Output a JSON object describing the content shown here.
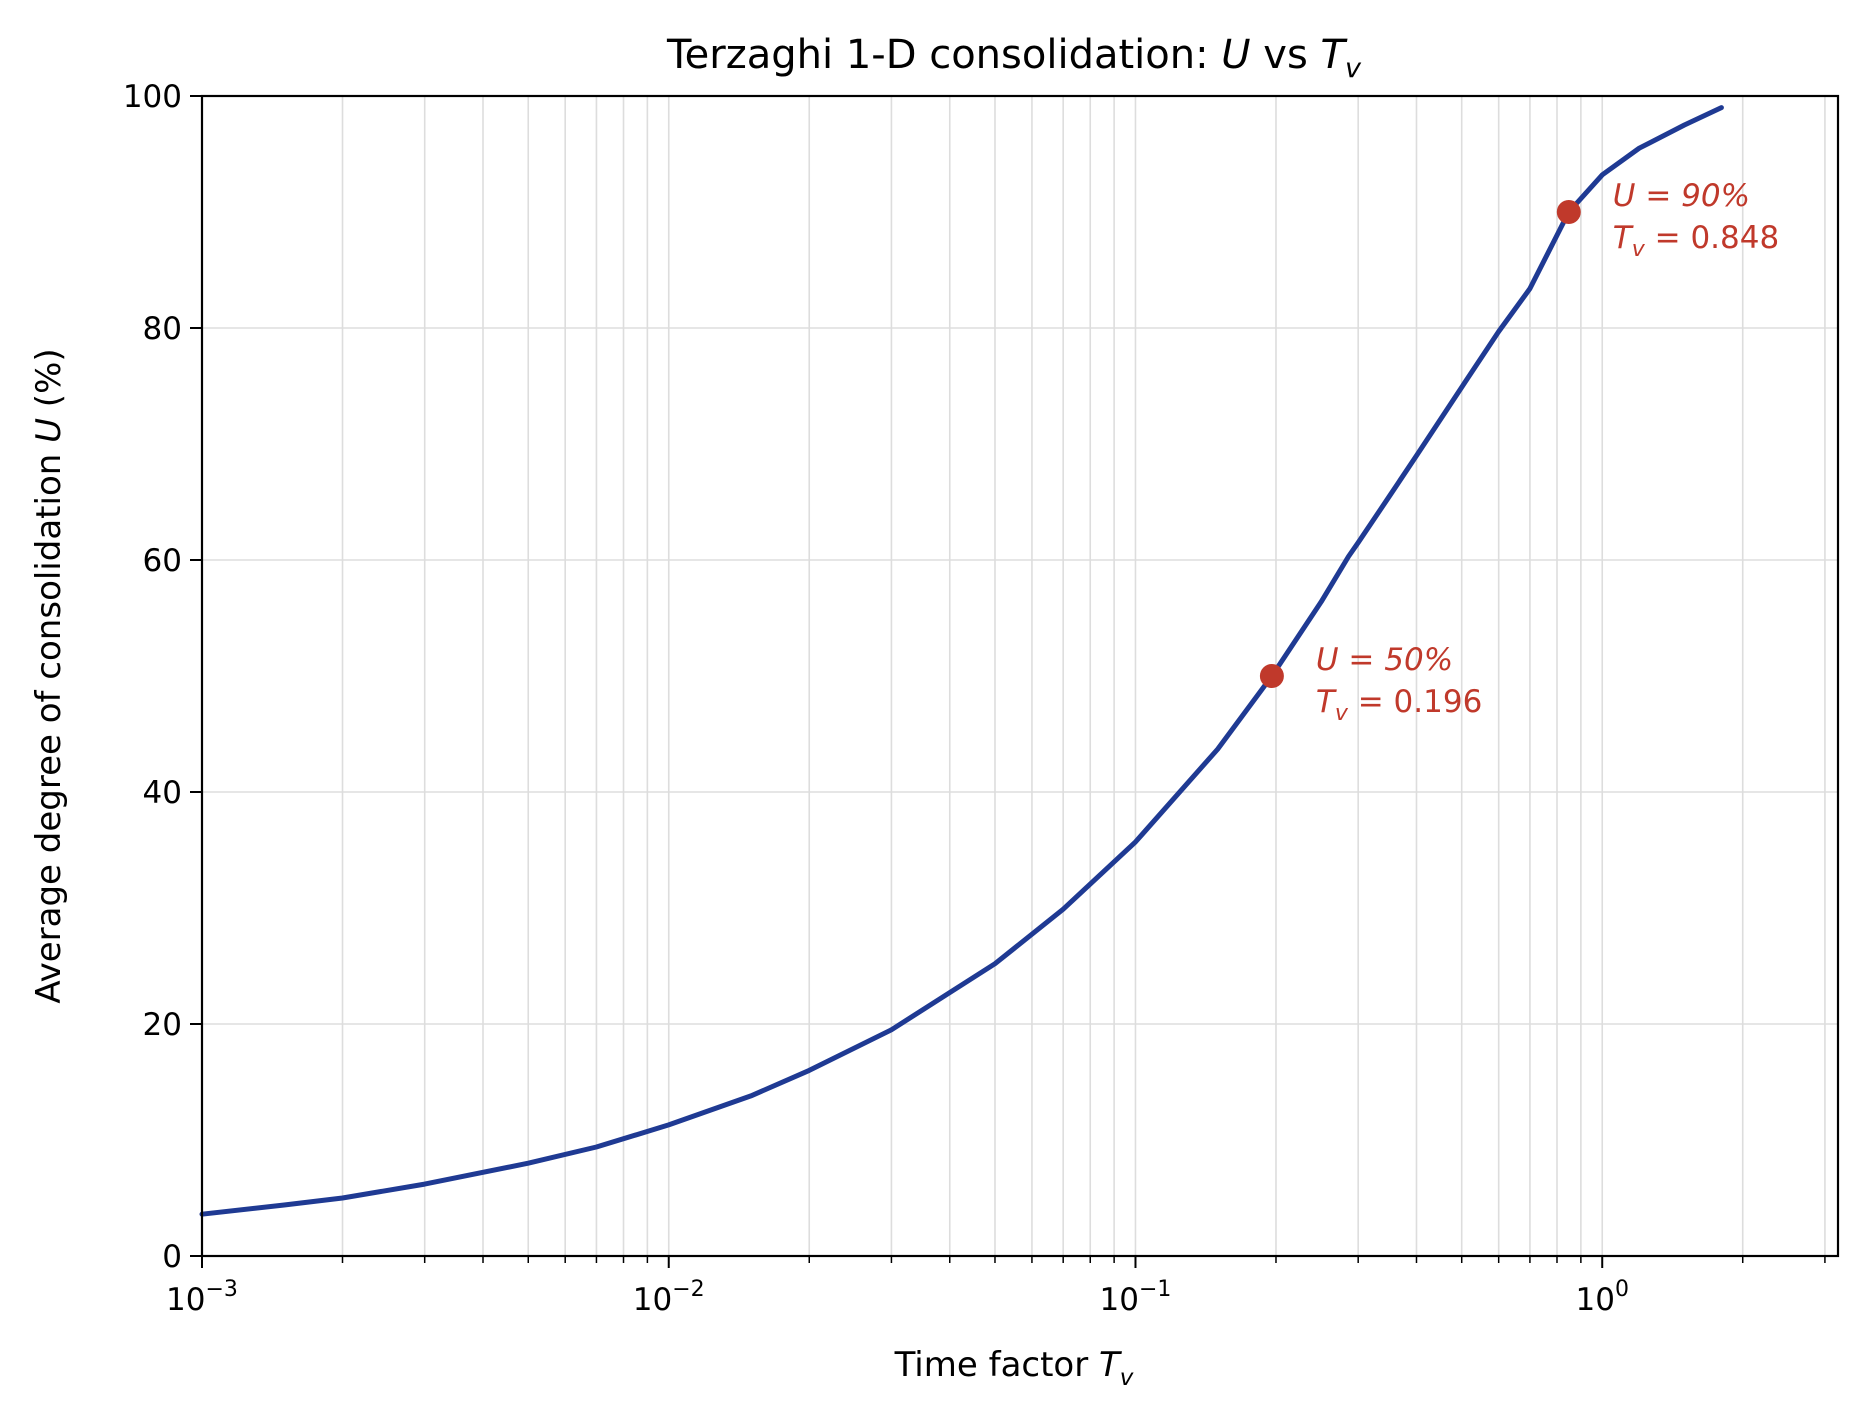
{
  "chart_data": {
    "type": "line",
    "title": {
      "prefix": "Terzaghi 1-D consolidation: ",
      "u": "U",
      "mid": " vs ",
      "t": "T",
      "sub": "v"
    },
    "xlabel": {
      "text": "Time factor ",
      "t": "T",
      "sub": "v"
    },
    "ylabel": {
      "text": "Average degree of consolidation ",
      "u": "U",
      "suffix": " (%)"
    },
    "x_scale": "log",
    "xlim": [
      0.001,
      3.2
    ],
    "ylim": [
      0,
      100
    ],
    "grid": true,
    "colors": {
      "curve": "#1f3a93",
      "markers": "#c0392b",
      "grid": "#dddddd"
    },
    "x_ticks": [
      {
        "value": 0.001,
        "base": "10",
        "exp": "−3"
      },
      {
        "value": 0.01,
        "base": "10",
        "exp": "−2"
      },
      {
        "value": 0.1,
        "base": "10",
        "exp": "−1"
      },
      {
        "value": 1,
        "base": "10",
        "exp": "0"
      }
    ],
    "y_ticks": [
      {
        "value": 0,
        "label": "0"
      },
      {
        "value": 20,
        "label": "20"
      },
      {
        "value": 40,
        "label": "40"
      },
      {
        "value": 60,
        "label": "60"
      },
      {
        "value": 80,
        "label": "80"
      },
      {
        "value": 100,
        "label": "100"
      }
    ],
    "series": [
      {
        "x": [
          0.001,
          0.0015,
          0.002,
          0.003,
          0.005,
          0.007,
          0.01,
          0.015,
          0.02,
          0.03,
          0.05,
          0.07,
          0.1,
          0.15,
          0.196,
          0.25,
          0.286,
          0.3,
          0.35,
          0.4,
          0.5,
          0.6,
          0.7,
          0.848,
          1.0,
          1.2,
          1.5,
          1.8
        ],
        "y": [
          3.6,
          4.4,
          5.0,
          6.2,
          8.0,
          9.4,
          11.3,
          13.8,
          16.0,
          19.5,
          25.2,
          29.9,
          35.7,
          43.7,
          50.0,
          56.4,
          60.3,
          61.5,
          65.5,
          69.0,
          74.9,
          79.7,
          83.4,
          90.0,
          93.2,
          95.5,
          97.5,
          99.0
        ]
      }
    ],
    "markers": [
      {
        "x": 0.196,
        "y": 50,
        "label_u": "U = 50%",
        "label_t": "T",
        "label_t_sub": "v",
        "label_t_val": " = 0.196"
      },
      {
        "x": 0.848,
        "y": 90,
        "label_u": "U = 90%",
        "label_t": "T",
        "label_t_sub": "v",
        "label_t_val": " = 0.848"
      }
    ]
  }
}
